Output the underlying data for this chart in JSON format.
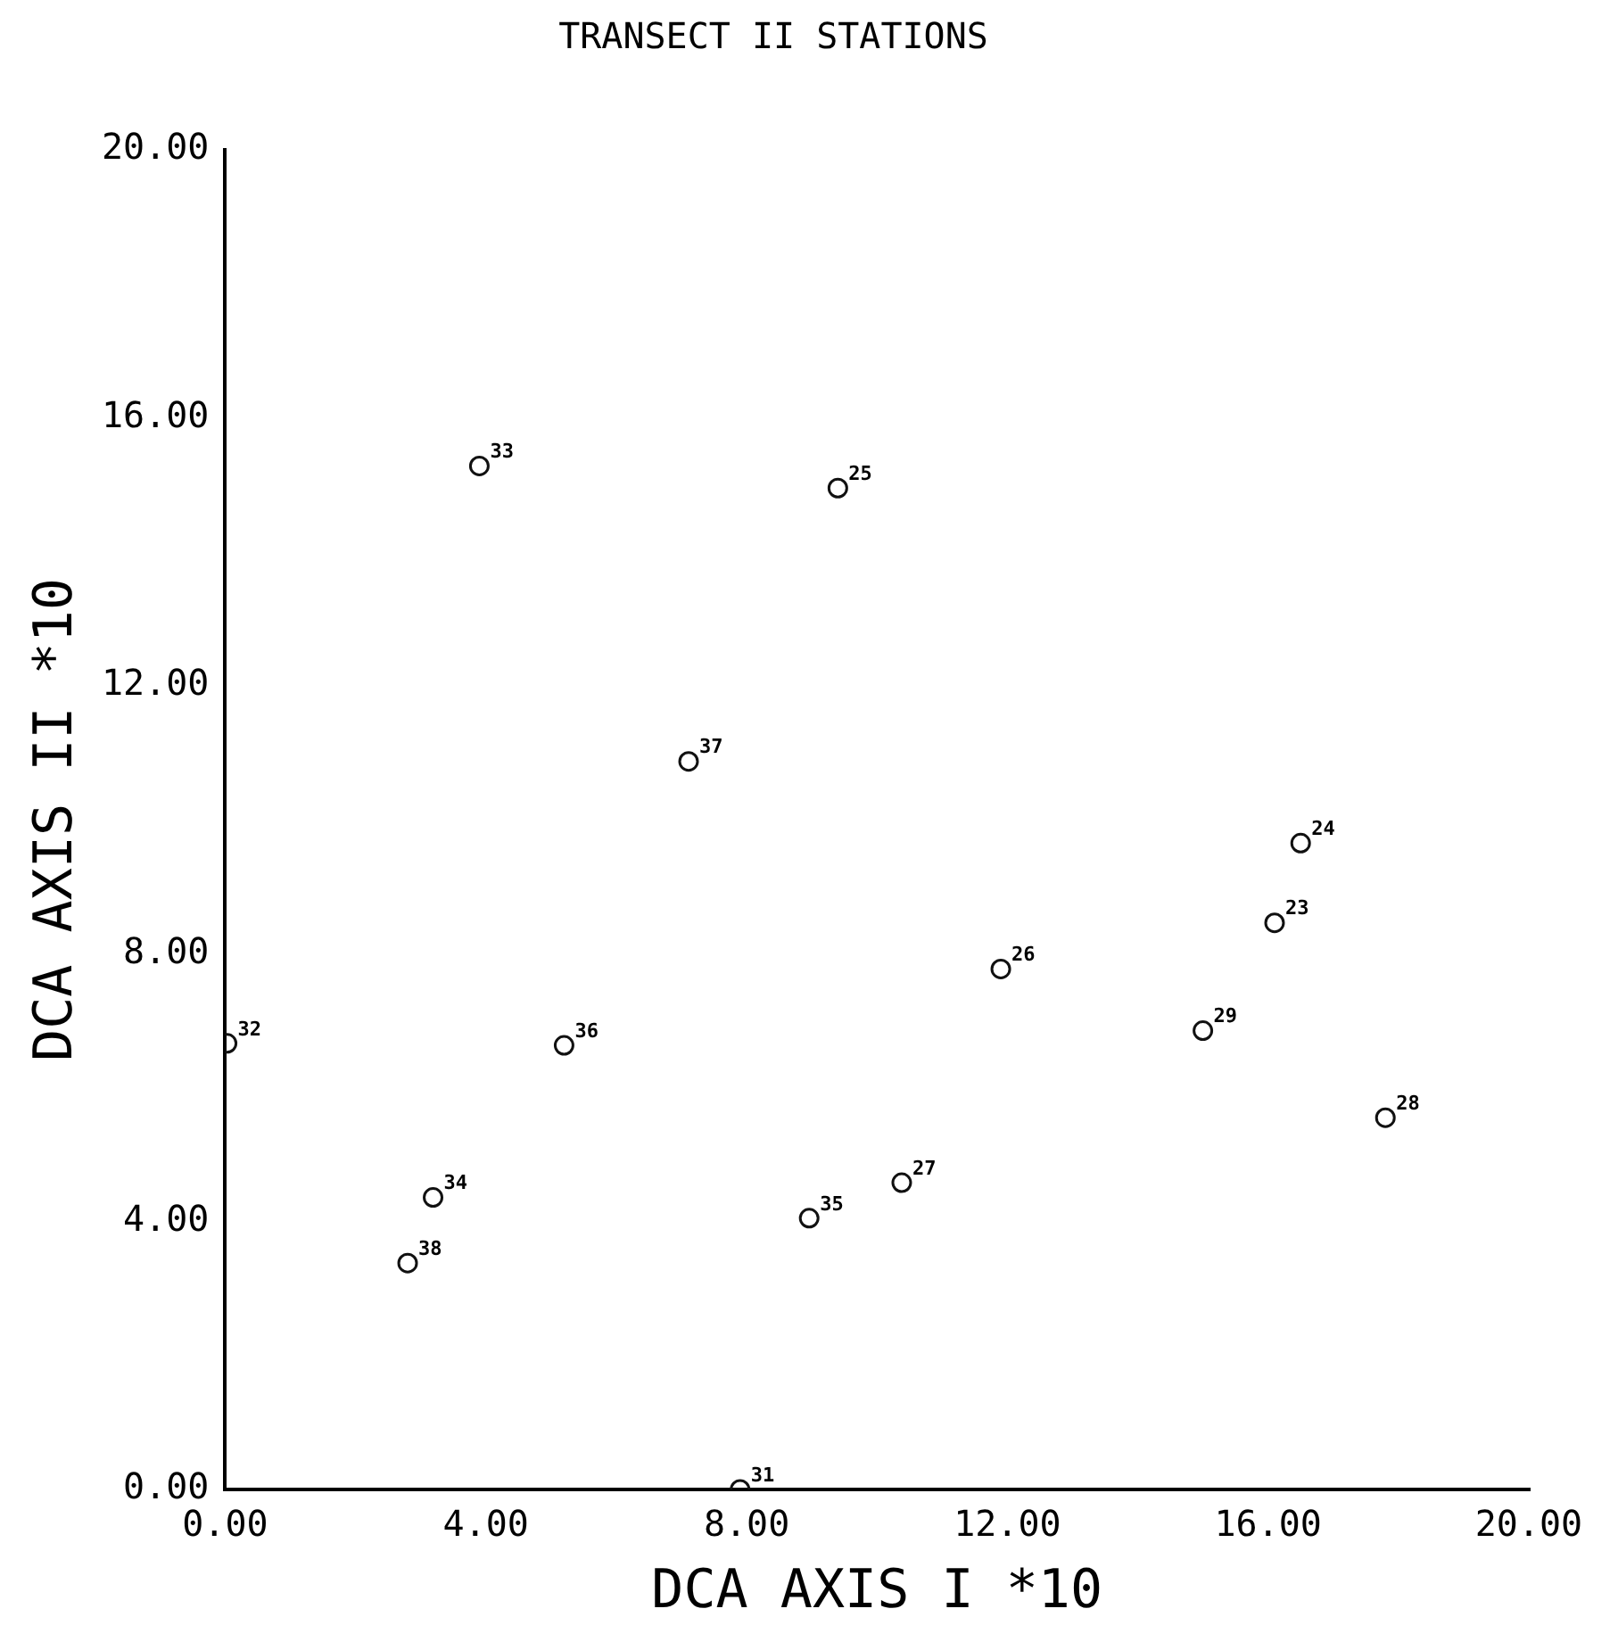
{
  "chart_data": {
    "type": "scatter",
    "title": "TRANSECT II STATIONS",
    "xlabel": "DCA AXIS I *10",
    "ylabel": "DCA AXIS II *10",
    "x": [
      0.03,
      3.9,
      9.4,
      7.11,
      16.5,
      16.1,
      11.9,
      15.0,
      17.8,
      5.2,
      3.19,
      2.8,
      8.96,
      10.38,
      7.9
    ],
    "values": [
      6.66,
      15.28,
      14.95,
      10.87,
      9.65,
      8.46,
      7.77,
      6.85,
      5.55,
      6.63,
      4.36,
      3.38,
      4.05,
      4.58,
      0.0
    ],
    "color": "#111111",
    "marker": "circle",
    "grid": false,
    "legend": false,
    "xlim": [
      0,
      20
    ],
    "xticks": [
      {
        "value": 0,
        "label": "0.00"
      },
      {
        "value": 4,
        "label": "4.00"
      },
      {
        "value": 8,
        "label": "8.00"
      },
      {
        "value": 12,
        "label": "12.00"
      },
      {
        "value": 16,
        "label": "16.00"
      },
      {
        "value": 20,
        "label": "20.00"
      }
    ],
    "ylim": [
      0,
      20
    ],
    "yticks": [
      {
        "value": 0,
        "label": "0.00"
      },
      {
        "value": 4,
        "label": "4.00"
      },
      {
        "value": 8,
        "label": "8.00"
      },
      {
        "value": 12,
        "label": "12.00"
      },
      {
        "value": 16,
        "label": "16.00"
      },
      {
        "value": 20,
        "label": "20.00"
      }
    ],
    "annotations": [
      {
        "text": "32",
        "x": 0.03,
        "y": 6.66
      },
      {
        "text": "33",
        "x": 3.9,
        "y": 15.28
      },
      {
        "text": "25",
        "x": 9.4,
        "y": 14.95
      },
      {
        "text": "37",
        "x": 7.11,
        "y": 10.87
      },
      {
        "text": "24",
        "x": 16.5,
        "y": 9.65
      },
      {
        "text": "23",
        "x": 16.1,
        "y": 8.46
      },
      {
        "text": "26",
        "x": 11.9,
        "y": 7.77
      },
      {
        "text": "29",
        "x": 15.0,
        "y": 6.85
      },
      {
        "text": "28",
        "x": 17.8,
        "y": 5.55
      },
      {
        "text": "36",
        "x": 5.2,
        "y": 6.63
      },
      {
        "text": "34",
        "x": 3.19,
        "y": 4.36
      },
      {
        "text": "38",
        "x": 2.8,
        "y": 3.38
      },
      {
        "text": "35",
        "x": 8.96,
        "y": 4.05
      },
      {
        "text": "27",
        "x": 10.38,
        "y": 4.58
      },
      {
        "text": "31",
        "x": 7.9,
        "y": 0.0
      }
    ]
  }
}
